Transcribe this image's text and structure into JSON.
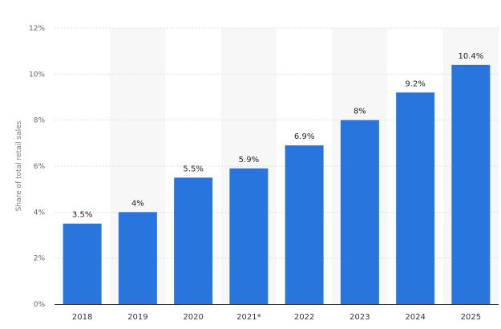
{
  "chart_data": {
    "type": "bar",
    "title": "",
    "xlabel": "",
    "ylabel": "Share of total retail sales",
    "categories": [
      "2018",
      "2019",
      "2020",
      "2021*",
      "2022",
      "2023",
      "2024",
      "2025"
    ],
    "values": [
      3.5,
      4,
      5.5,
      5.9,
      6.9,
      8,
      9.2,
      10.4
    ],
    "value_labels": [
      "3.5%",
      "4%",
      "5.5%",
      "5.9%",
      "6.9%",
      "8%",
      "9.2%",
      "10.4%"
    ],
    "y_ticks": [
      0,
      2,
      4,
      6,
      8,
      10,
      12
    ],
    "y_tick_labels": [
      "0%",
      "2%",
      "4%",
      "6%",
      "8%",
      "10%",
      "12%"
    ],
    "ylim": [
      0,
      12
    ],
    "grid": true,
    "alternating_column_shading": true,
    "colors": {
      "bar": "#2876dd",
      "grid": "#dddddd",
      "band": "#f7f7f7",
      "axis": "#333333"
    }
  }
}
